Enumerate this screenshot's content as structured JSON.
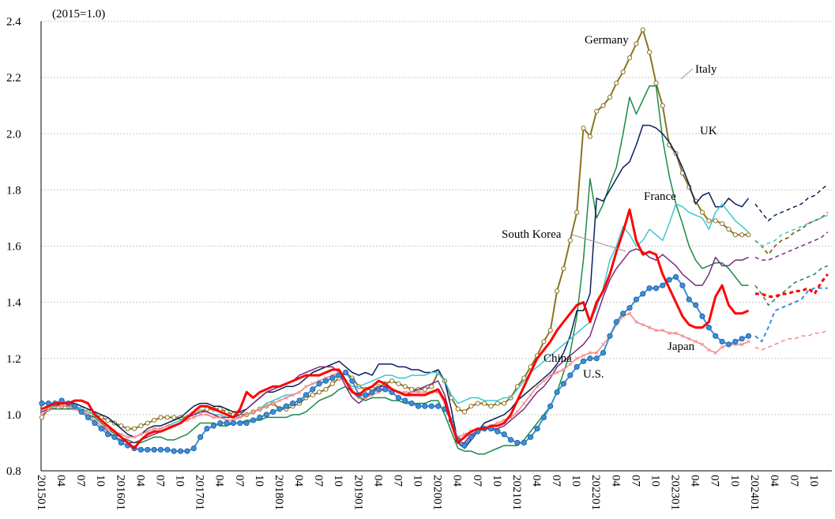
{
  "chart_data": {
    "type": "line",
    "subtitle": "(2015=1.0)",
    "categories": [
      "201501",
      null,
      null,
      "04",
      null,
      null,
      "07",
      null,
      null,
      "10",
      null,
      null,
      "201601",
      null,
      null,
      "04",
      null,
      null,
      "07",
      null,
      null,
      "10",
      null,
      null,
      "201701",
      null,
      null,
      "04",
      null,
      null,
      "07",
      null,
      null,
      "10",
      null,
      null,
      "201801",
      null,
      null,
      "04",
      null,
      null,
      "07",
      null,
      null,
      "10",
      null,
      null,
      "201901",
      null,
      null,
      "04",
      null,
      null,
      "07",
      null,
      null,
      "10",
      null,
      null,
      "202001",
      null,
      null,
      "04",
      null,
      null,
      "07",
      null,
      null,
      "10",
      null,
      null,
      "202101",
      null,
      null,
      "04",
      null,
      null,
      "07",
      null,
      null,
      "10",
      null,
      null,
      "202201",
      null,
      null,
      "04",
      null,
      null,
      "07",
      null,
      null,
      "10",
      null,
      null,
      "202301",
      null,
      null,
      "04",
      null,
      null,
      "07",
      null,
      null,
      "10",
      null,
      null,
      "202401",
      null,
      null,
      "04",
      null,
      null,
      "07",
      null,
      null,
      "10",
      null,
      null
    ],
    "dashed_from": "202401",
    "ylim": [
      0.8,
      2.4
    ],
    "yticks": [
      0.8,
      {
        "value": 1.0,
        "label": "1.0"
      },
      1.2,
      1.4,
      1.6,
      1.8,
      {
        "value": 2.0,
        "label": "2.0"
      },
      2.2,
      2.4
    ],
    "grid": true,
    "series": [
      {
        "name": "Germany",
        "color": "#8b7320",
        "marker": "circle-open",
        "width": 2,
        "values": [
          0.99,
          1.02,
          1.03,
          1.03,
          1.03,
          1.03,
          1.02,
          1.01,
          1.0,
          0.99,
          0.98,
          0.97,
          0.96,
          0.95,
          0.95,
          0.96,
          0.97,
          0.98,
          0.99,
          0.99,
          0.99,
          0.99,
          0.99,
          1.0,
          1.01,
          1.02,
          1.02,
          1.02,
          1.01,
          1.0,
          1.0,
          1.0,
          1.01,
          1.02,
          1.03,
          1.04,
          1.02,
          1.02,
          1.03,
          1.04,
          1.06,
          1.07,
          1.08,
          1.09,
          1.11,
          1.13,
          1.15,
          1.13,
          1.1,
          1.09,
          1.09,
          1.1,
          1.11,
          1.12,
          1.11,
          1.1,
          1.09,
          1.09,
          1.09,
          1.1,
          1.15,
          1.12,
          1.06,
          1.02,
          1.01,
          1.03,
          1.04,
          1.04,
          1.03,
          1.04,
          1.04,
          1.06,
          1.1,
          1.13,
          1.17,
          1.21,
          1.26,
          1.3,
          1.44,
          1.52,
          1.62,
          1.72,
          2.02,
          1.99,
          2.08,
          2.1,
          2.13,
          2.18,
          2.22,
          2.27,
          2.32,
          2.37,
          2.29,
          2.18,
          2.1,
          1.96,
          1.93,
          1.86,
          1.81,
          1.76,
          1.72,
          1.69,
          1.69,
          1.68,
          1.66,
          1.64,
          1.64,
          1.64,
          1.62,
          1.6,
          1.57,
          1.6,
          1.62,
          1.63,
          1.65,
          1.66,
          1.68,
          1.69,
          1.7,
          1.72
        ]
      },
      {
        "name": "Italy",
        "color": "#1a8a45",
        "marker": "none",
        "width": 1.5,
        "values": [
          1.01,
          1.02,
          1.02,
          1.02,
          1.02,
          1.02,
          1.01,
          1.0,
          0.99,
          0.97,
          0.95,
          0.93,
          0.92,
          0.91,
          0.9,
          0.9,
          0.91,
          0.92,
          0.92,
          0.91,
          0.91,
          0.92,
          0.93,
          0.95,
          0.97,
          0.97,
          0.97,
          0.96,
          0.96,
          0.97,
          0.97,
          0.98,
          0.98,
          0.98,
          0.99,
          0.99,
          0.99,
          0.99,
          1.0,
          1.0,
          1.01,
          1.03,
          1.05,
          1.06,
          1.07,
          1.09,
          1.1,
          1.08,
          1.06,
          1.05,
          1.06,
          1.06,
          1.06,
          1.05,
          1.05,
          1.04,
          1.04,
          1.04,
          1.04,
          1.05,
          1.05,
          1.0,
          0.94,
          0.88,
          0.87,
          0.87,
          0.86,
          0.86,
          0.87,
          0.88,
          0.89,
          0.89,
          0.89,
          0.91,
          0.94,
          0.97,
          1.0,
          1.03,
          1.08,
          1.15,
          1.22,
          1.35,
          1.55,
          1.84,
          1.7,
          1.75,
          1.82,
          1.88,
          2.0,
          2.13,
          2.07,
          2.12,
          2.17,
          2.17,
          1.98,
          1.85,
          1.75,
          1.68,
          1.6,
          1.55,
          1.52,
          1.53,
          1.54,
          1.54,
          1.52,
          1.49,
          1.46,
          1.46,
          1.46,
          1.43,
          1.39,
          1.41,
          1.43,
          1.45,
          1.47,
          1.48,
          1.49,
          1.5,
          1.52,
          1.53
        ]
      },
      {
        "name": "UK",
        "color": "#0d1f5c",
        "marker": "none",
        "width": 1.5,
        "values": [
          1.02,
          1.03,
          1.03,
          1.04,
          1.04,
          1.04,
          1.03,
          1.02,
          1.01,
          1.0,
          0.99,
          0.97,
          0.95,
          0.93,
          0.92,
          0.93,
          0.95,
          0.96,
          0.96,
          0.97,
          0.98,
          0.99,
          1.01,
          1.03,
          1.04,
          1.04,
          1.03,
          1.03,
          1.02,
          1.01,
          1.01,
          1.02,
          1.04,
          1.06,
          1.08,
          1.08,
          1.09,
          1.1,
          1.1,
          1.11,
          1.13,
          1.15,
          1.16,
          1.17,
          1.18,
          1.19,
          1.17,
          1.15,
          1.14,
          1.15,
          1.14,
          1.18,
          1.18,
          1.18,
          1.17,
          1.17,
          1.16,
          1.16,
          1.15,
          1.15,
          1.16,
          1.12,
          1.02,
          0.9,
          0.88,
          0.91,
          0.94,
          0.97,
          0.98,
          0.99,
          1.0,
          1.02,
          1.05,
          1.07,
          1.09,
          1.11,
          1.13,
          1.15,
          1.18,
          1.22,
          1.28,
          1.37,
          1.37,
          1.43,
          1.77,
          1.76,
          1.8,
          1.84,
          1.88,
          1.9,
          1.96,
          2.03,
          2.03,
          2.02,
          2.0,
          1.97,
          1.93,
          1.88,
          1.82,
          1.75,
          1.78,
          1.79,
          1.74,
          1.74,
          1.77,
          1.75,
          1.74,
          1.77,
          1.75,
          1.72,
          1.69,
          1.71,
          1.72,
          1.73,
          1.74,
          1.75,
          1.77,
          1.78,
          1.8,
          1.82
        ]
      },
      {
        "name": "France",
        "color": "#3cc8d0",
        "marker": "none",
        "width": 1.5,
        "values": [
          1.02,
          1.03,
          1.03,
          1.03,
          1.03,
          1.03,
          1.02,
          1.01,
          1.0,
          0.98,
          0.96,
          0.94,
          0.93,
          0.92,
          0.92,
          0.93,
          0.94,
          0.95,
          0.95,
          0.96,
          0.97,
          0.98,
          0.99,
          1.0,
          1.01,
          1.01,
          1.0,
          1.0,
          0.99,
          0.99,
          0.99,
          1.0,
          1.01,
          1.02,
          1.04,
          1.05,
          1.06,
          1.07,
          1.07,
          1.08,
          1.1,
          1.11,
          1.12,
          1.13,
          1.14,
          1.14,
          1.12,
          1.1,
          1.1,
          1.11,
          1.12,
          1.13,
          1.14,
          1.14,
          1.13,
          1.13,
          1.14,
          1.14,
          1.14,
          1.15,
          1.15,
          1.12,
          1.07,
          1.04,
          1.05,
          1.06,
          1.06,
          1.05,
          1.05,
          1.05,
          1.06,
          1.06,
          1.09,
          1.12,
          1.15,
          1.17,
          1.19,
          1.21,
          1.23,
          1.25,
          1.27,
          1.29,
          1.31,
          1.33,
          1.38,
          1.45,
          1.55,
          1.6,
          1.67,
          1.64,
          1.6,
          1.62,
          1.66,
          1.64,
          1.62,
          1.68,
          1.75,
          1.74,
          1.72,
          1.71,
          1.7,
          1.66,
          1.72,
          1.75,
          1.72,
          1.69,
          1.67,
          1.65,
          1.62,
          1.6,
          1.61,
          1.62,
          1.64,
          1.65,
          1.66,
          1.67,
          1.68,
          1.69,
          1.7,
          1.71
        ]
      },
      {
        "name": "South Korea",
        "color": "#7a2a82",
        "marker": "none",
        "width": 1.5,
        "values": [
          1.01,
          1.02,
          1.03,
          1.03,
          1.03,
          1.02,
          1.01,
          1.0,
          0.98,
          0.96,
          0.94,
          0.92,
          0.91,
          0.9,
          0.9,
          0.91,
          0.92,
          0.93,
          0.94,
          0.95,
          0.96,
          0.97,
          0.99,
          1.0,
          1.01,
          1.01,
          1.0,
          0.99,
          0.99,
          0.99,
          1.0,
          1.02,
          1.04,
          1.06,
          1.08,
          1.09,
          1.1,
          1.11,
          1.12,
          1.14,
          1.15,
          1.16,
          1.17,
          1.17,
          1.17,
          1.15,
          1.1,
          1.06,
          1.04,
          1.06,
          1.08,
          1.1,
          1.1,
          1.09,
          1.08,
          1.07,
          1.08,
          1.09,
          1.1,
          1.11,
          1.12,
          1.07,
          0.98,
          0.9,
          0.9,
          0.93,
          0.94,
          0.95,
          0.95,
          0.95,
          0.96,
          0.98,
          1.0,
          1.02,
          1.05,
          1.08,
          1.1,
          1.13,
          1.17,
          1.19,
          1.21,
          1.23,
          1.25,
          1.28,
          1.35,
          1.42,
          1.48,
          1.52,
          1.55,
          1.58,
          1.59,
          1.58,
          1.56,
          1.55,
          1.57,
          1.55,
          1.53,
          1.5,
          1.48,
          1.46,
          1.46,
          1.5,
          1.56,
          1.53,
          1.53,
          1.55,
          1.55,
          1.56,
          1.56,
          1.55,
          1.55,
          1.56,
          1.57,
          1.58,
          1.59,
          1.6,
          1.61,
          1.62,
          1.63,
          1.65
        ]
      },
      {
        "name": "China",
        "color": "#f08a8a",
        "marker": "x",
        "width": 1.5,
        "values": [
          1.0,
          1.02,
          1.03,
          1.03,
          1.03,
          1.02,
          1.01,
          1.0,
          0.98,
          0.96,
          0.95,
          0.94,
          0.93,
          0.92,
          0.92,
          0.93,
          0.94,
          0.95,
          0.95,
          0.96,
          0.96,
          0.97,
          0.98,
          0.99,
          1.0,
          1.0,
          0.99,
          0.99,
          0.98,
          0.98,
          0.99,
          1.0,
          1.01,
          1.02,
          1.03,
          1.04,
          1.05,
          1.06,
          1.07,
          1.08,
          1.1,
          1.11,
          1.12,
          1.13,
          1.14,
          1.15,
          1.12,
          1.09,
          1.06,
          1.06,
          1.07,
          1.08,
          1.09,
          1.09,
          1.08,
          1.08,
          1.08,
          1.08,
          1.08,
          1.08,
          1.08,
          1.04,
          0.97,
          0.92,
          0.93,
          0.94,
          0.95,
          0.95,
          0.96,
          0.97,
          0.98,
          0.99,
          1.01,
          1.04,
          1.07,
          1.1,
          1.12,
          1.14,
          1.15,
          1.16,
          1.18,
          1.2,
          1.21,
          1.22,
          1.22,
          1.25,
          1.28,
          1.32,
          1.35,
          1.36,
          1.33,
          1.32,
          1.31,
          1.3,
          1.3,
          1.29,
          1.29,
          1.28,
          1.27,
          1.26,
          1.25,
          1.23,
          1.22,
          1.24,
          1.25,
          1.25,
          1.25,
          1.26,
          1.24,
          1.23,
          1.24,
          1.25,
          1.26,
          1.27,
          1.27,
          1.28,
          1.28,
          1.29,
          1.29,
          1.3
        ]
      },
      {
        "name": "Japan",
        "color": "#3a8fd9",
        "marker": "circle",
        "width": 2,
        "values": [
          1.04,
          1.04,
          1.04,
          1.05,
          1.04,
          1.03,
          1.01,
          0.99,
          0.97,
          0.95,
          0.93,
          0.92,
          0.9,
          0.89,
          0.88,
          0.875,
          0.875,
          0.875,
          0.875,
          0.875,
          0.87,
          0.87,
          0.87,
          0.88,
          0.92,
          0.95,
          0.96,
          0.97,
          0.97,
          0.97,
          0.97,
          0.97,
          0.98,
          0.99,
          1.0,
          1.01,
          1.02,
          1.03,
          1.04,
          1.05,
          1.07,
          1.09,
          1.11,
          1.12,
          1.13,
          1.14,
          1.15,
          1.12,
          1.07,
          1.07,
          1.08,
          1.09,
          1.09,
          1.08,
          1.06,
          1.05,
          1.04,
          1.03,
          1.03,
          1.03,
          1.03,
          1.02,
          0.98,
          0.91,
          0.89,
          0.92,
          0.94,
          0.95,
          0.95,
          0.94,
          0.93,
          0.91,
          0.9,
          0.9,
          0.92,
          0.95,
          0.99,
          1.03,
          1.08,
          1.11,
          1.14,
          1.17,
          1.19,
          1.2,
          1.2,
          1.22,
          1.28,
          1.33,
          1.36,
          1.38,
          1.41,
          1.43,
          1.45,
          1.45,
          1.46,
          1.48,
          1.49,
          1.46,
          1.41,
          1.39,
          1.35,
          1.31,
          1.28,
          1.26,
          1.25,
          1.26,
          1.27,
          1.28,
          1.28,
          1.26,
          1.31,
          1.37,
          1.38,
          1.39,
          1.4,
          1.41,
          1.44,
          1.45,
          1.45,
          1.45
        ]
      },
      {
        "name": "U.S.",
        "color": "#ff0000",
        "marker": "none",
        "width": 3,
        "values": [
          1.02,
          1.03,
          1.04,
          1.04,
          1.04,
          1.05,
          1.05,
          1.04,
          1.0,
          0.98,
          0.96,
          0.94,
          0.92,
          0.9,
          0.88,
          0.91,
          0.93,
          0.94,
          0.94,
          0.95,
          0.96,
          0.97,
          0.99,
          1.01,
          1.03,
          1.03,
          1.02,
          1.01,
          1.0,
          0.99,
          1.02,
          1.08,
          1.06,
          1.08,
          1.09,
          1.1,
          1.1,
          1.11,
          1.12,
          1.13,
          1.14,
          1.14,
          1.14,
          1.15,
          1.16,
          1.16,
          1.12,
          1.08,
          1.07,
          1.09,
          1.1,
          1.12,
          1.11,
          1.09,
          1.08,
          1.07,
          1.07,
          1.07,
          1.07,
          1.08,
          1.09,
          1.05,
          0.97,
          0.9,
          0.92,
          0.94,
          0.95,
          0.95,
          0.96,
          0.96,
          0.97,
          1.0,
          1.05,
          1.1,
          1.15,
          1.2,
          1.23,
          1.26,
          1.3,
          1.33,
          1.36,
          1.39,
          1.4,
          1.33,
          1.4,
          1.44,
          1.5,
          1.58,
          1.65,
          1.73,
          1.62,
          1.57,
          1.58,
          1.57,
          1.5,
          1.45,
          1.4,
          1.35,
          1.32,
          1.31,
          1.31,
          1.33,
          1.42,
          1.46,
          1.39,
          1.36,
          1.36,
          1.37,
          1.43,
          1.43,
          1.42,
          1.42,
          1.43,
          1.43,
          1.44,
          1.44,
          1.45,
          1.43,
          1.47,
          1.5
        ]
      }
    ]
  }
}
